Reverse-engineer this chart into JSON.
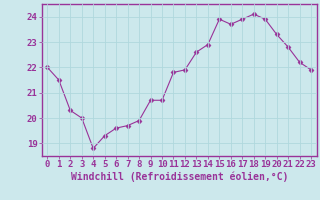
{
  "x": [
    0,
    1,
    2,
    3,
    4,
    5,
    6,
    7,
    8,
    9,
    10,
    11,
    12,
    13,
    14,
    15,
    16,
    17,
    18,
    19,
    20,
    21,
    22,
    23
  ],
  "y": [
    22.0,
    21.5,
    20.3,
    20.0,
    18.8,
    19.3,
    19.6,
    19.7,
    19.9,
    20.7,
    20.7,
    21.8,
    21.9,
    22.6,
    22.9,
    23.9,
    23.7,
    23.9,
    24.1,
    23.9,
    23.3,
    22.8,
    22.2,
    21.9
  ],
  "line_color": "#993399",
  "marker": "D",
  "marker_size": 2.5,
  "bg_color": "#cce8ec",
  "grid_color": "#b0d8dd",
  "xlabel": "Windchill (Refroidissement éolien,°C)",
  "xlabel_fontsize": 7,
  "tick_fontsize": 6.5,
  "ylim": [
    18.5,
    24.5
  ],
  "xlim": [
    -0.5,
    23.5
  ],
  "yticks": [
    19,
    20,
    21,
    22,
    23,
    24
  ],
  "xticks": [
    0,
    1,
    2,
    3,
    4,
    5,
    6,
    7,
    8,
    9,
    10,
    11,
    12,
    13,
    14,
    15,
    16,
    17,
    18,
    19,
    20,
    21,
    22,
    23
  ],
  "spine_color": "#993399",
  "axis_color": "#993399"
}
